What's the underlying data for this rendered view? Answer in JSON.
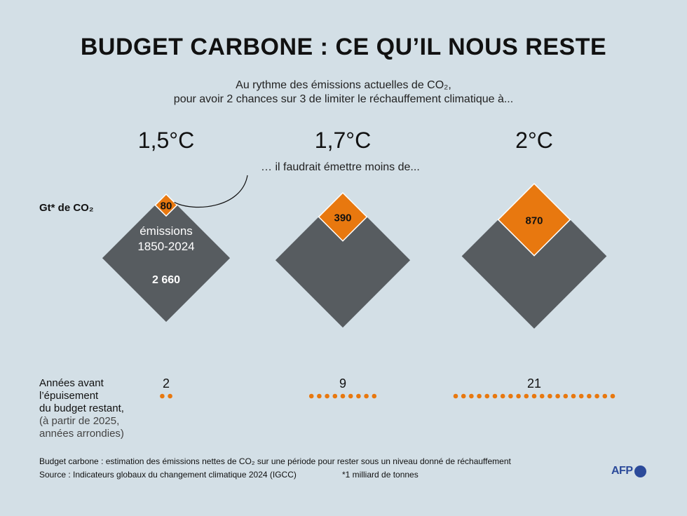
{
  "title": "BUDGET CARBONE : CE QU’IL NOUS RESTE",
  "subtitle_line1": "Au rythme des émissions actuelles de CO₂,",
  "subtitle_line2": "pour avoir 2 chances sur 3 de limiter le réchauffement climatique à...",
  "sentence": "… il faudrait émettre moins de...",
  "unit_label": "Gt* de CO₂",
  "emissions_label_line1": "émissions",
  "emissions_label_line2": "1850-2024",
  "years_label": {
    "line1": "Années avant",
    "line2": "l’épuisement",
    "line3": "du budget restant,",
    "line4": "(à partir de 2025,",
    "line5": "années arrondies)"
  },
  "footnote_definition": "Budget carbone : estimation des émissions nettes de CO₂ sur une période pour rester sous un niveau donné de réchauffement",
  "footnote_source": "Source : Indicateurs globaux du changement climatique 2024 (IGCC)",
  "footnote_unit": "*1 milliard de tonnes",
  "logo_text": "AFP",
  "colors": {
    "background": "#d3dfe6",
    "historical": "#575c60",
    "remaining": "#e8780f",
    "logo": "#2b4a9a"
  },
  "chart_data": {
    "type": "area",
    "title": "BUDGET CARBONE : CE QU’IL NOUS RESTE",
    "scenarios": [
      {
        "label": "1,5°C",
        "emissions_1850_2024": 2660,
        "emissions_1850_2024_label": "2 660",
        "remaining_budget": 80,
        "remaining_budget_label": "80",
        "years_left": 2,
        "years_left_label": "2"
      },
      {
        "label": "1,7°C",
        "emissions_1850_2024": 2660,
        "remaining_budget": 390,
        "remaining_budget_label": "390",
        "years_left": 9,
        "years_left_label": "9"
      },
      {
        "label": "2°C",
        "emissions_1850_2024": 2660,
        "remaining_budget": 870,
        "remaining_budget_label": "870",
        "years_left": 21,
        "years_left_label": "21"
      }
    ]
  }
}
